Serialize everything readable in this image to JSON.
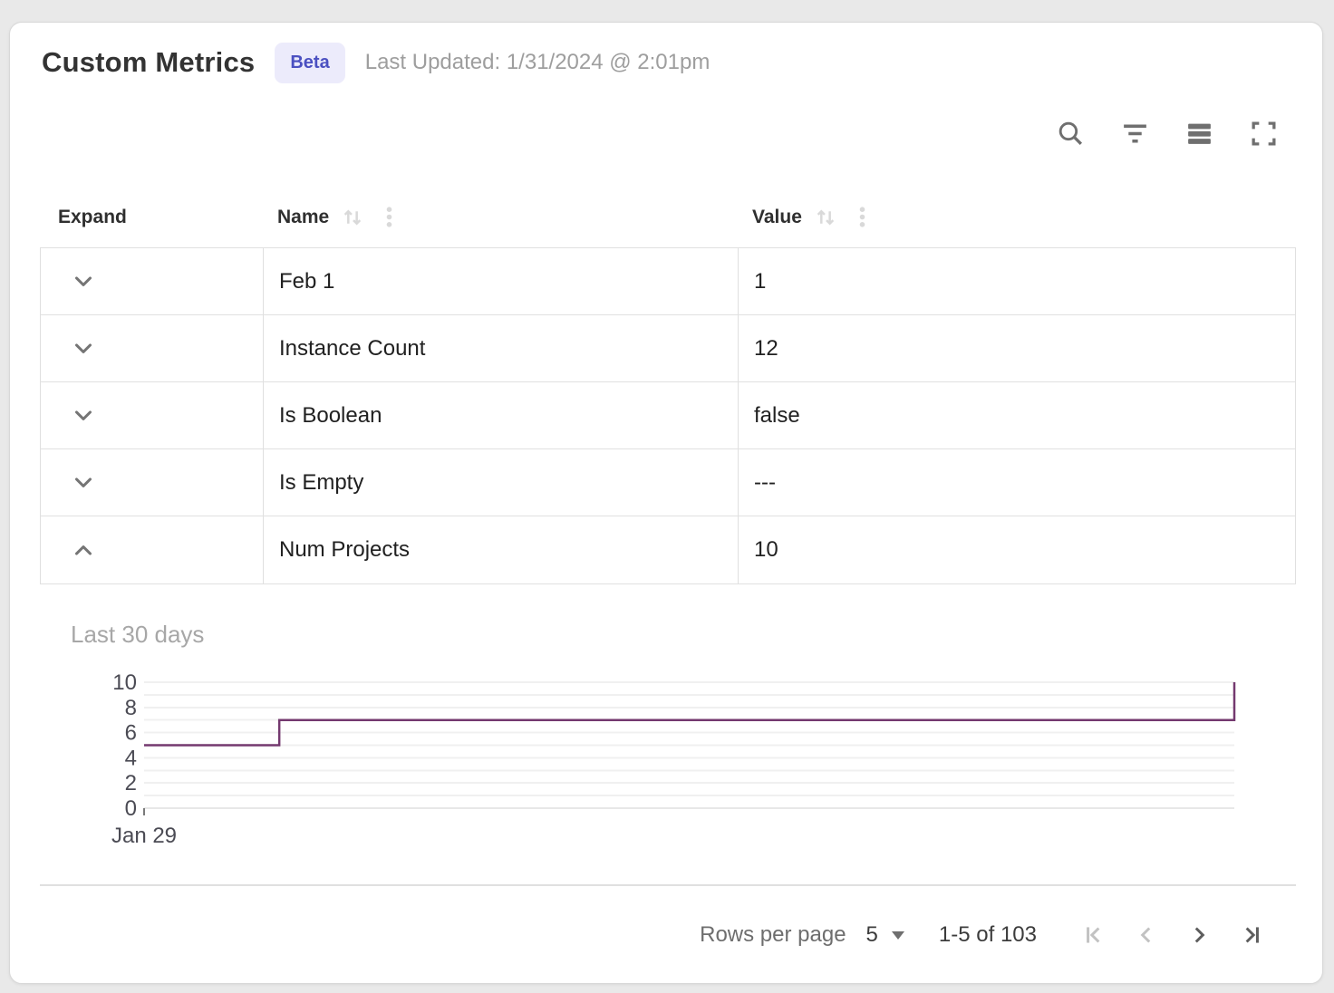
{
  "header": {
    "title": "Custom Metrics",
    "badge": "Beta",
    "last_updated": "Last Updated: 1/31/2024 @ 2:01pm"
  },
  "colors": {
    "badge_bg": "#ecebfb",
    "badge_text": "#4b50c1",
    "chart_line": "#74396f"
  },
  "toolbar": {
    "icons": [
      "search",
      "filter",
      "density",
      "fullscreen"
    ]
  },
  "table": {
    "columns": {
      "expand": "Expand",
      "name": "Name",
      "value": "Value"
    },
    "rows": [
      {
        "name": "Feb 1",
        "value": "1",
        "expanded": false
      },
      {
        "name": "Instance Count",
        "value": "12",
        "expanded": false
      },
      {
        "name": "Is Boolean",
        "value": "false",
        "expanded": false
      },
      {
        "name": "Is Empty",
        "value": "---",
        "expanded": false
      },
      {
        "name": "Num Projects",
        "value": "10",
        "expanded": true
      }
    ]
  },
  "chart_data": {
    "type": "line",
    "title": "Last 30 days",
    "series_name": "Num Projects",
    "ylim": [
      0,
      10
    ],
    "y_ticks": [
      0,
      2,
      4,
      6,
      8,
      10
    ],
    "y_grid_interval": 1,
    "grid": true,
    "x_ticks": [
      {
        "label": "Jan 29",
        "fx": 0
      }
    ],
    "points": [
      [
        0,
        5
      ],
      [
        0.124,
        5
      ],
      [
        0.124,
        7
      ],
      [
        1,
        7
      ],
      [
        1,
        10
      ]
    ],
    "colors": {
      "line": "#74396f",
      "grid": "#f0f0f0",
      "grid_zero": "#e7e7e7",
      "axis_labels": "#4b4b54",
      "title": "#a7a7a7",
      "tick": "#7a7a7a"
    }
  },
  "footer": {
    "rows_per_page_label": "Rows per page",
    "rows_per_page_value": "5",
    "range_label": "1-5 of 103",
    "pagination": [
      {
        "name": "first-page",
        "disabled": true
      },
      {
        "name": "previous-page",
        "disabled": true
      },
      {
        "name": "next-page",
        "disabled": false
      },
      {
        "name": "last-page",
        "disabled": false
      }
    ]
  }
}
